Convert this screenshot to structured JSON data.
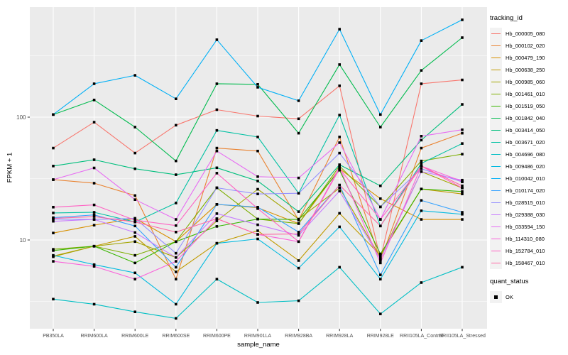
{
  "chart_data": {
    "type": "line",
    "title": "",
    "xlabel": "sample_name",
    "ylabel": "FPKM + 1",
    "y_scale": "log10",
    "ylim": [
      1.9,
      790
    ],
    "y_tick_values": [
      100,
      10
    ],
    "y_tick_labels": [
      "100",
      "10"
    ],
    "y_minor_values": [
      3.162,
      31.62,
      316.2
    ],
    "grid": true,
    "legend_position": "right",
    "panel_bg": "#EBEBEB",
    "grid_color": "#FFFFFF",
    "tick_color": "#333333",
    "tick_label_color": "#4D4D4D",
    "point_color": "#000000",
    "point_shape": "square",
    "x_categories": [
      "PB350LA",
      "RRIM600LA",
      "RRIM600LE",
      "RRIM600SE",
      "RRIM600PE",
      "RRIM901LA",
      "RRIM928BA",
      "RRIM928LA",
      "RRIM928LE",
      "RRII105LA_Control",
      "RRII105LA_Stressed"
    ],
    "series": [
      {
        "name": "Hb_000005_080",
        "color": "#F8766D",
        "quant_status": "OK",
        "values": [
          56,
          91,
          51,
          86,
          115,
          102,
          97,
          180,
          7,
          187,
          201
        ]
      },
      {
        "name": "Hb_000102_020",
        "color": "#EA8331",
        "quant_status": "OK",
        "values": [
          31,
          29,
          23,
          4.8,
          56,
          53,
          14.5,
          69,
          6.8,
          56,
          74
        ]
      },
      {
        "name": "Hb_000479_190",
        "color": "#D89000",
        "quant_status": "OK",
        "values": [
          11.4,
          13.2,
          15,
          9.7,
          19.5,
          18.3,
          13.6,
          38,
          21.7,
          14.7,
          14.7
        ]
      },
      {
        "name": "Hb_000638_250",
        "color": "#C09B00",
        "quant_status": "OK",
        "values": [
          7.4,
          8.9,
          10.7,
          5.5,
          9.4,
          11.9,
          6.8,
          16.5,
          7.5,
          26,
          23.7
        ]
      },
      {
        "name": "Hb_000985_060",
        "color": "#A3A500",
        "quant_status": "OK",
        "values": [
          7.3,
          8.9,
          9.7,
          7.2,
          14.3,
          25.9,
          14.8,
          26.5,
          7.2,
          36,
          26.5
        ]
      },
      {
        "name": "Hb_001461_010",
        "color": "#7CAE00",
        "quant_status": "OK",
        "values": [
          8.4,
          8.9,
          7.5,
          9.7,
          26.6,
          14.8,
          13.6,
          40,
          18.6,
          44,
          50
        ]
      },
      {
        "name": "Hb_001519_050",
        "color": "#39B600",
        "quant_status": "OK",
        "values": [
          8.2,
          8.9,
          6.5,
          9.7,
          12.9,
          14.8,
          14.7,
          37,
          7.7,
          26,
          24.8
        ]
      },
      {
        "name": "Hb_001842_040",
        "color": "#00BB4E",
        "quant_status": "OK",
        "values": [
          105,
          138,
          83,
          44,
          187,
          185,
          74,
          268,
          83,
          240,
          444
        ]
      },
      {
        "name": "Hb_003414_050",
        "color": "#00BF7D",
        "quant_status": "OK",
        "values": [
          40,
          45,
          38,
          34,
          38.7,
          30.2,
          17,
          41,
          27.6,
          65,
          127
        ]
      },
      {
        "name": "Hb_003671_020",
        "color": "#00C1A3",
        "quant_status": "OK",
        "values": [
          16.6,
          16.8,
          14,
          20,
          78,
          69,
          24,
          104,
          13,
          42,
          61
        ]
      },
      {
        "name": "Hb_004696_080",
        "color": "#00BFC4",
        "quant_status": "OK",
        "values": [
          3.3,
          3,
          2.6,
          2.3,
          4.8,
          3.1,
          3.2,
          6,
          2.5,
          4.5,
          6
        ]
      },
      {
        "name": "Hb_009486_020",
        "color": "#00BAE0",
        "quant_status": "OK",
        "values": [
          7.5,
          6.3,
          5.4,
          3,
          9.4,
          10.2,
          5.9,
          12.8,
          4.8,
          17.3,
          16.2
        ]
      },
      {
        "name": "Hb_010042_010",
        "color": "#00B0F6",
        "quant_status": "OK",
        "values": [
          105,
          187,
          219,
          141,
          427,
          175,
          136,
          520,
          105,
          420,
          620
        ]
      },
      {
        "name": "Hb_010174_020",
        "color": "#35A2FF",
        "quant_status": "OK",
        "values": [
          15.2,
          16,
          13,
          6,
          19.5,
          18.5,
          11.6,
          28,
          5.2,
          21,
          16.8
        ]
      },
      {
        "name": "Hb_028515_010",
        "color": "#9590FF",
        "quant_status": "OK",
        "values": [
          14.8,
          14.7,
          15,
          7.8,
          26.6,
          23.7,
          24,
          51,
          18.6,
          38,
          29.7
        ]
      },
      {
        "name": "Hb_029388_030",
        "color": "#C77CFF",
        "quant_status": "OK",
        "values": [
          14.2,
          14.7,
          11.5,
          7.2,
          16.4,
          13.3,
          10.9,
          25,
          7,
          36,
          30.7
        ]
      },
      {
        "name": "Hb_033594_150",
        "color": "#E76BF3",
        "quant_status": "OK",
        "values": [
          31,
          38.6,
          21.3,
          14.7,
          53,
          32.8,
          32,
          62,
          14.7,
          70,
          79
        ]
      },
      {
        "name": "Hb_114310_080",
        "color": "#FA62DB",
        "quant_status": "OK",
        "values": [
          6.7,
          6.1,
          4.8,
          6.7,
          14.9,
          11.1,
          9.7,
          39,
          6.5,
          40,
          30
        ]
      },
      {
        "name": "Hb_152784_010",
        "color": "#FF61C3",
        "quant_status": "OK",
        "values": [
          18.5,
          19.3,
          14.5,
          13.1,
          35,
          18,
          9.7,
          38,
          14.7,
          40,
          26.5
        ]
      },
      {
        "name": "Hb_158467_010",
        "color": "#FF67A4",
        "quant_status": "OK",
        "values": [
          15,
          15.5,
          14,
          11.6,
          14.9,
          11.1,
          11.2,
          28,
          13,
          40,
          27.6
        ]
      }
    ],
    "legend": {
      "title": "tracking_id",
      "quant": {
        "title": "quant_status",
        "items": [
          "OK"
        ]
      }
    }
  }
}
